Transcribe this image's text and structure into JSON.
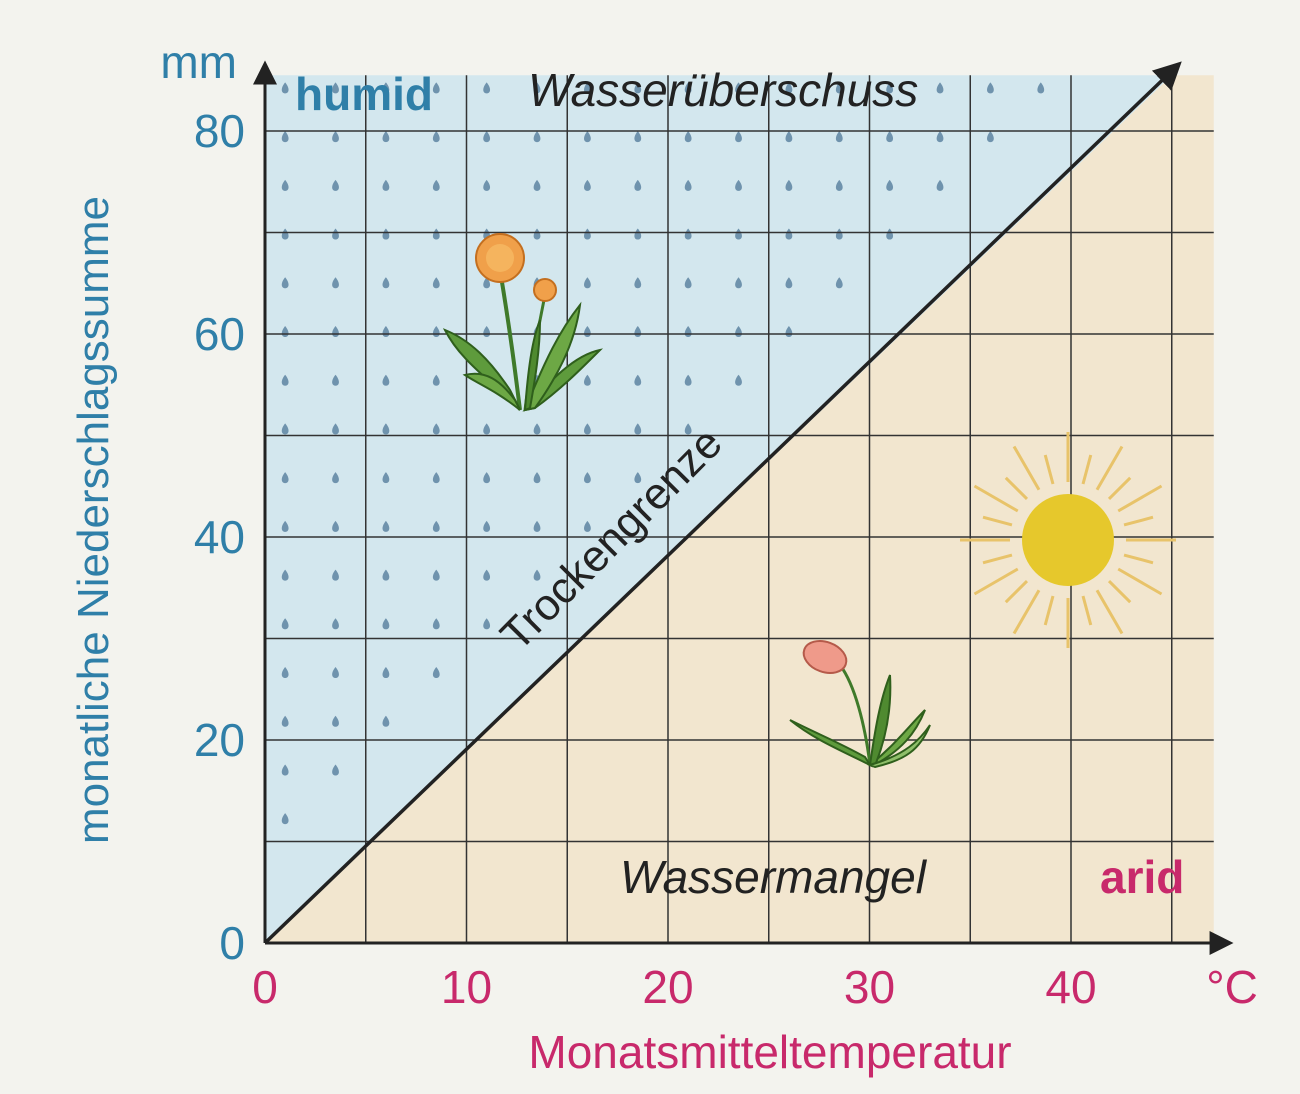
{
  "chart_data": {
    "type": "line",
    "title": "",
    "xlabel": "Monatsmitteltemperatur",
    "ylabel": "monatliche Niederschlagssumme",
    "x_unit": "°C",
    "y_unit": "mm",
    "xlim": [
      0,
      45
    ],
    "ylim": [
      0,
      85
    ],
    "x_ticks": [
      0,
      10,
      20,
      30,
      40
    ],
    "y_ticks": [
      0,
      20,
      40,
      60,
      80
    ],
    "x_tick_labels": [
      "0",
      "10",
      "20",
      "30",
      "40"
    ],
    "y_tick_labels": [
      "0",
      "20",
      "40",
      "60",
      "80"
    ],
    "grid": true,
    "series": [
      {
        "name": "Trockengrenze",
        "x": [
          0,
          45
        ],
        "y": [
          0,
          90
        ]
      }
    ],
    "regions": {
      "upper": {
        "label": "humid",
        "description": "Wasserüberschuss",
        "color": "#d3e7ee"
      },
      "lower": {
        "label": "arid",
        "description": "Wassermangel",
        "color": "#f2e6cf"
      }
    },
    "annotations": {
      "boundary_label": "Trockengrenze"
    },
    "icons": [
      "raindrop-icon",
      "dandelion-icon",
      "wilted-dandelion-icon",
      "sun-icon"
    ]
  }
}
